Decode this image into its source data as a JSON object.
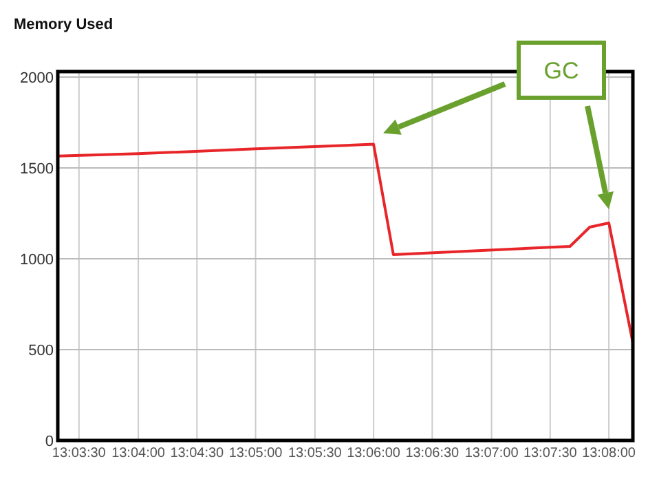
{
  "chart_data": {
    "type": "line",
    "title": "Memory Used",
    "x": [
      13.0553,
      13.0667,
      13.0833,
      13.1,
      13.1028,
      13.1278,
      13.1306,
      13.1333,
      13.1367
    ],
    "series": [
      {
        "color": "#e8262a",
        "values": [
          1565,
          1578,
          1605,
          1630,
          1023,
          1068,
          1174,
          1197,
          538
        ]
      }
    ],
    "xlim": [
      13.0553,
      13.1367
    ],
    "xticks": [
      {
        "value": 13.0583,
        "label": "13:03:30"
      },
      {
        "value": 13.0667,
        "label": "13:04:00"
      },
      {
        "value": 13.075,
        "label": "13:04:30"
      },
      {
        "value": 13.0833,
        "label": "13:05:00"
      },
      {
        "value": 13.0917,
        "label": "13:05:30"
      },
      {
        "value": 13.1,
        "label": "13:06:00"
      },
      {
        "value": 13.1083,
        "label": "13:06:30"
      },
      {
        "value": 13.1167,
        "label": "13:07:00"
      },
      {
        "value": 13.125,
        "label": "13:07:30"
      },
      {
        "value": 13.1333,
        "label": "13:08:00"
      }
    ],
    "ylim": [
      0,
      2030
    ],
    "yticks": [
      0,
      500,
      1000,
      1500,
      2000
    ],
    "grid": true,
    "marker": "none",
    "line_style": "solid",
    "annotations": [
      "GC"
    ]
  }
}
